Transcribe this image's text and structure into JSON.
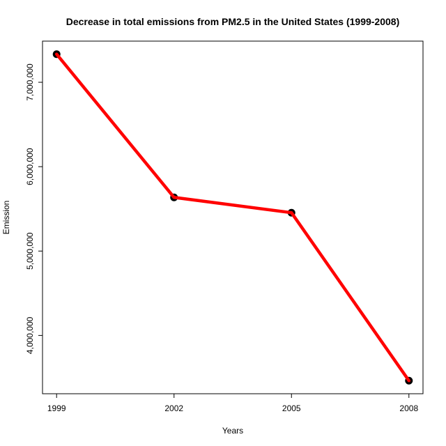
{
  "chart_data": {
    "type": "line",
    "title": "Decrease in total emissions from PM2.5 in the United States (1999-2008)",
    "xlabel": "Years",
    "ylabel": "Emission",
    "x": [
      1999,
      2002,
      2005,
      2008
    ],
    "series": [
      {
        "values": [
          7332967,
          5635780,
          5454703,
          3464206
        ]
      }
    ],
    "x_ticks": [
      "1999",
      "2002",
      "2005",
      "2008"
    ],
    "y_tick_values": [
      4000000,
      5000000,
      6000000,
      7000000
    ],
    "y_ticks": [
      "4,000,000",
      "5,000,000",
      "6,000,000",
      "7,000,000"
    ],
    "xlim": [
      1998.64,
      2008.36
    ],
    "ylim": [
      3309496,
      7487677
    ],
    "grid": false,
    "legend": "none",
    "line_color": "#ff0000",
    "point_color": "#000000"
  }
}
